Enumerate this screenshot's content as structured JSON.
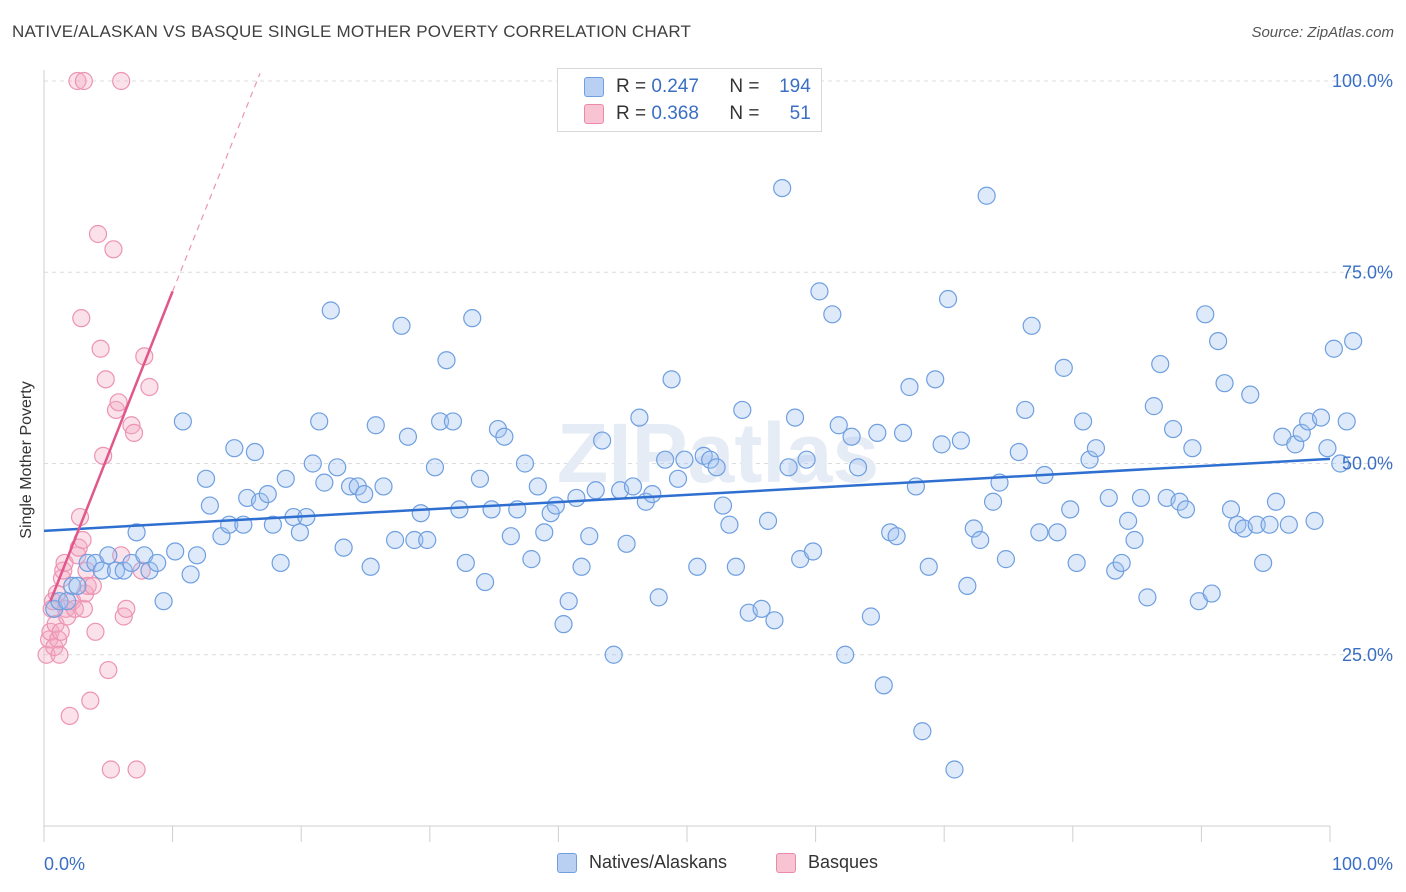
{
  "title": "NATIVE/ALASKAN VS BASQUE SINGLE MOTHER POVERTY CORRELATION CHART",
  "source": "Source: ZipAtlas.com",
  "watermark": "ZIPatlas",
  "legend": {
    "r_label": "R =",
    "n_label": "N =",
    "rows": [
      {
        "r": "0.247",
        "n": "194",
        "color": "#6f9fe0",
        "fill": "#b9d0f2"
      },
      {
        "r": "0.368",
        "n": "51",
        "color": "#ea8aa8",
        "fill": "#f8c4d3"
      }
    ]
  },
  "chart_data": {
    "type": "scatter",
    "title": "NATIVE/ALASKAN VS BASQUE SINGLE MOTHER POVERTY CORRELATION CHART",
    "xlabel": "",
    "ylabel": "Single Mother Poverty",
    "xlim": [
      0,
      100
    ],
    "ylim": [
      0,
      105
    ],
    "x_tick_labels": [
      "0.0%",
      "100.0%"
    ],
    "y_ticks": [
      25,
      50,
      75,
      100
    ],
    "y_tick_labels": [
      "25.0%",
      "50.0%",
      "75.0%",
      "100.0%"
    ],
    "grid": true,
    "legend_position": "top-center",
    "series": [
      {
        "name": "Natives/Alaskans",
        "color": "#5b8fd9",
        "trend": {
          "x": [
            0,
            100
          ],
          "y": [
            41.2,
            50.6
          ]
        },
        "points": [
          [
            0.8,
            31
          ],
          [
            1.2,
            32
          ],
          [
            1.8,
            32
          ],
          [
            2.2,
            34
          ],
          [
            2.6,
            34
          ],
          [
            3.4,
            37
          ],
          [
            4,
            37
          ],
          [
            4.5,
            36
          ],
          [
            5,
            38
          ],
          [
            5.6,
            36
          ],
          [
            6.2,
            36
          ],
          [
            6.8,
            37
          ],
          [
            7.2,
            41
          ],
          [
            7.8,
            38
          ],
          [
            8.2,
            36
          ],
          [
            8.8,
            37
          ],
          [
            9.3,
            32
          ],
          [
            10.2,
            38.5
          ],
          [
            10.8,
            55.5
          ],
          [
            11.4,
            35.5
          ],
          [
            11.9,
            38
          ],
          [
            12.6,
            48
          ],
          [
            12.9,
            44.5
          ],
          [
            13.8,
            40.5
          ],
          [
            14.4,
            42
          ],
          [
            14.8,
            52
          ],
          [
            15.5,
            42
          ],
          [
            15.8,
            45.5
          ],
          [
            16.4,
            51.5
          ],
          [
            16.8,
            45
          ],
          [
            17.4,
            46
          ],
          [
            17.8,
            42
          ],
          [
            18.4,
            37
          ],
          [
            18.8,
            48
          ],
          [
            19.4,
            43
          ],
          [
            19.9,
            41
          ],
          [
            20.4,
            43
          ],
          [
            20.9,
            50
          ],
          [
            21.4,
            55.5
          ],
          [
            21.8,
            47.5
          ],
          [
            22.3,
            70
          ],
          [
            22.8,
            49.5
          ],
          [
            23.3,
            39
          ],
          [
            23.8,
            47
          ],
          [
            24.4,
            47
          ],
          [
            24.9,
            46
          ],
          [
            25.4,
            36.5
          ],
          [
            25.8,
            55
          ],
          [
            26.4,
            47
          ],
          [
            27.3,
            40
          ],
          [
            27.8,
            68
          ],
          [
            28.3,
            53.5
          ],
          [
            28.8,
            40
          ],
          [
            29.3,
            43.5
          ],
          [
            29.8,
            40
          ],
          [
            30.4,
            49.5
          ],
          [
            30.8,
            55.5
          ],
          [
            31.3,
            63.5
          ],
          [
            31.8,
            55.5
          ],
          [
            32.3,
            44
          ],
          [
            32.8,
            37
          ],
          [
            33.3,
            69
          ],
          [
            33.9,
            48
          ],
          [
            34.3,
            34.5
          ],
          [
            34.8,
            44
          ],
          [
            35.3,
            54.5
          ],
          [
            35.8,
            53.5
          ],
          [
            36.3,
            40.5
          ],
          [
            36.8,
            44
          ],
          [
            37.4,
            50
          ],
          [
            37.9,
            37.5
          ],
          [
            38.4,
            47
          ],
          [
            38.9,
            41
          ],
          [
            39.4,
            43.5
          ],
          [
            39.8,
            44.5
          ],
          [
            40.4,
            29
          ],
          [
            40.8,
            32
          ],
          [
            41.4,
            45.5
          ],
          [
            41.8,
            36.5
          ],
          [
            42.4,
            40.5
          ],
          [
            42.9,
            46.5
          ],
          [
            43.4,
            53
          ],
          [
            44.3,
            25
          ],
          [
            44.8,
            46.5
          ],
          [
            45.3,
            39.5
          ],
          [
            45.8,
            47
          ],
          [
            46.3,
            56
          ],
          [
            46.8,
            45
          ],
          [
            47.3,
            46
          ],
          [
            47.8,
            32.5
          ],
          [
            48.3,
            50.5
          ],
          [
            48.8,
            61
          ],
          [
            49.3,
            48
          ],
          [
            49.8,
            50.5
          ],
          [
            50.8,
            36.5
          ],
          [
            51.3,
            51
          ],
          [
            51.8,
            50.5
          ],
          [
            52.3,
            49.5
          ],
          [
            52.8,
            44.5
          ],
          [
            53.3,
            42
          ],
          [
            53.8,
            36.5
          ],
          [
            54.3,
            57
          ],
          [
            54.8,
            30.5
          ],
          [
            55.8,
            31
          ],
          [
            56.3,
            42.5
          ],
          [
            56.8,
            29.5
          ],
          [
            57.4,
            86
          ],
          [
            57.9,
            49.5
          ],
          [
            58.4,
            56
          ],
          [
            58.8,
            37.5
          ],
          [
            59.3,
            50.5
          ],
          [
            59.8,
            38.5
          ],
          [
            60.3,
            72.5
          ],
          [
            61.3,
            69.5
          ],
          [
            61.8,
            55
          ],
          [
            62.3,
            25
          ],
          [
            62.8,
            53.5
          ],
          [
            63.3,
            49.5
          ],
          [
            64.3,
            30
          ],
          [
            64.8,
            54
          ],
          [
            65.3,
            21
          ],
          [
            65.8,
            41
          ],
          [
            66.3,
            40.5
          ],
          [
            66.8,
            54
          ],
          [
            67.3,
            60
          ],
          [
            67.8,
            47
          ],
          [
            68.3,
            15
          ],
          [
            68.8,
            36.5
          ],
          [
            69.3,
            61
          ],
          [
            69.8,
            52.5
          ],
          [
            70.3,
            71.5
          ],
          [
            70.8,
            10
          ],
          [
            71.3,
            53
          ],
          [
            71.8,
            34
          ],
          [
            72.3,
            41.5
          ],
          [
            72.8,
            40
          ],
          [
            73.3,
            85
          ],
          [
            73.8,
            45
          ],
          [
            74.3,
            47.5
          ],
          [
            74.8,
            37.5
          ],
          [
            75.8,
            51.5
          ],
          [
            76.3,
            57
          ],
          [
            76.8,
            68
          ],
          [
            77.4,
            41
          ],
          [
            77.8,
            48.5
          ],
          [
            78.8,
            41
          ],
          [
            79.3,
            62.5
          ],
          [
            79.8,
            44
          ],
          [
            80.3,
            37
          ],
          [
            80.8,
            55.5
          ],
          [
            81.3,
            50.5
          ],
          [
            81.8,
            52
          ],
          [
            82.8,
            45.5
          ],
          [
            83.3,
            36
          ],
          [
            83.8,
            37
          ],
          [
            84.3,
            42.5
          ],
          [
            84.8,
            40
          ],
          [
            85.3,
            45.5
          ],
          [
            85.8,
            32.5
          ],
          [
            86.3,
            57.5
          ],
          [
            86.8,
            63
          ],
          [
            87.3,
            45.5
          ],
          [
            87.8,
            54.5
          ],
          [
            88.3,
            45
          ],
          [
            88.8,
            44
          ],
          [
            89.3,
            52
          ],
          [
            89.8,
            32
          ],
          [
            90.3,
            69.5
          ],
          [
            90.8,
            33
          ],
          [
            91.3,
            66
          ],
          [
            91.8,
            60.5
          ],
          [
            92.3,
            44
          ],
          [
            92.8,
            42
          ],
          [
            93.3,
            41.5
          ],
          [
            93.8,
            59
          ],
          [
            94.3,
            42
          ],
          [
            94.8,
            37
          ],
          [
            95.3,
            42
          ],
          [
            95.8,
            45
          ],
          [
            96.3,
            53.5
          ],
          [
            96.8,
            42
          ],
          [
            97.3,
            52.5
          ],
          [
            97.8,
            54
          ],
          [
            98.3,
            55.5
          ],
          [
            98.8,
            42.5
          ],
          [
            99.3,
            56
          ],
          [
            99.8,
            52
          ],
          [
            100.3,
            65
          ],
          [
            100.8,
            50
          ],
          [
            101.3,
            55.5
          ],
          [
            101.8,
            66
          ]
        ]
      },
      {
        "name": "Basques",
        "color": "#e8799d",
        "trend": {
          "x": [
            0.5,
            10
          ],
          "y": [
            32,
            72.5
          ]
        },
        "trend_ext": {
          "x": [
            10,
            16.8
          ],
          "y": [
            72.5,
            101
          ]
        },
        "points": [
          [
            0.2,
            25
          ],
          [
            0.4,
            27
          ],
          [
            0.5,
            28
          ],
          [
            0.6,
            31
          ],
          [
            0.7,
            32
          ],
          [
            0.8,
            26
          ],
          [
            0.9,
            29
          ],
          [
            1,
            33
          ],
          [
            1.1,
            27
          ],
          [
            1.2,
            25
          ],
          [
            1.3,
            28
          ],
          [
            1.4,
            35
          ],
          [
            1.5,
            36
          ],
          [
            1.6,
            37
          ],
          [
            1.7,
            31
          ],
          [
            1.8,
            30
          ],
          [
            2,
            17
          ],
          [
            2.2,
            32
          ],
          [
            2.4,
            31
          ],
          [
            2.6,
            38
          ],
          [
            2.7,
            39
          ],
          [
            2.8,
            43
          ],
          [
            2.9,
            69
          ],
          [
            3,
            40
          ],
          [
            3.1,
            31
          ],
          [
            3.2,
            33
          ],
          [
            3.3,
            36
          ],
          [
            3.4,
            34
          ],
          [
            3.6,
            19
          ],
          [
            3.8,
            34
          ],
          [
            4,
            28
          ],
          [
            4.2,
            80
          ],
          [
            4.4,
            65
          ],
          [
            4.6,
            51
          ],
          [
            4.8,
            61
          ],
          [
            5,
            23
          ],
          [
            5.2,
            10
          ],
          [
            5.4,
            78
          ],
          [
            5.6,
            57
          ],
          [
            5.8,
            58
          ],
          [
            6,
            38
          ],
          [
            6.2,
            30
          ],
          [
            6.4,
            31
          ],
          [
            6.8,
            55
          ],
          [
            7,
            54
          ],
          [
            7.2,
            10
          ],
          [
            7.6,
            36
          ],
          [
            7.8,
            64
          ],
          [
            8.2,
            60
          ],
          [
            2.6,
            100
          ],
          [
            3.1,
            100
          ],
          [
            6,
            100
          ]
        ]
      }
    ]
  },
  "bottom_legend": [
    {
      "label": "Natives/Alaskans",
      "color": "#6f9fe0",
      "fill": "#b9d0f2"
    },
    {
      "label": "Basques",
      "color": "#ea8aa8",
      "fill": "#f8c4d3"
    }
  ]
}
